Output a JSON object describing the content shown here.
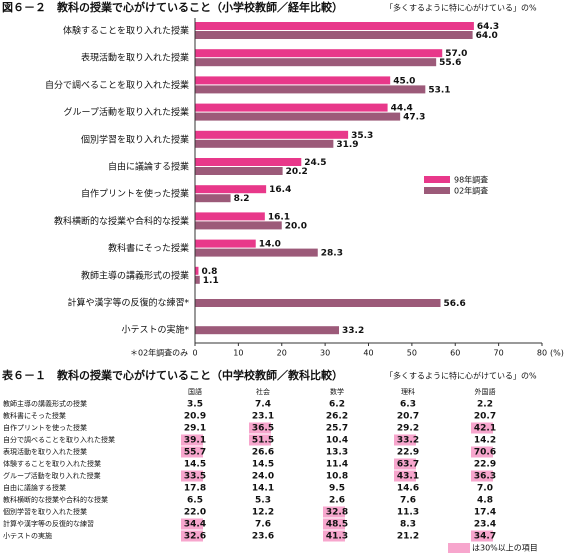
{
  "chart_data": {
    "type": "bar",
    "orientation": "horizontal",
    "title": "図６－２　教科の授業で心がけていること（小学校教師／経年比較）",
    "subtitle": "「多くするように特に心がけている」の%",
    "categories": [
      "体験することを取り入れた授業",
      "表現活動を取り入れた授業",
      "自分で調べることを取り入れた授業",
      "グループ活動を取り入れた授業",
      "個別学習を取り入れた授業",
      "自由に議論する授業",
      "自作プリントを使った授業",
      "教科横断的な授業や合科的な授業",
      "教科書にそった授業",
      "教師主導の講義形式の授業",
      "計算や漢字等の反復的な練習*",
      "小テストの実施*"
    ],
    "series": [
      {
        "name": "98年調査",
        "color": "#e8388a",
        "values": [
          64.3,
          57,
          45,
          44.4,
          35.3,
          24.5,
          16.4,
          16.1,
          14,
          0.8,
          null,
          null
        ],
        "value_labels": [
          "64.3",
          "57.0",
          "45.0",
          "44.4",
          "35.3",
          "24.5",
          "16.4",
          "16.1",
          "14.0",
          "0.8",
          null,
          null
        ]
      },
      {
        "name": "02年調査",
        "color": "#9c5a79",
        "values": [
          64,
          55.6,
          53.1,
          47.3,
          31.9,
          20.2,
          8.2,
          20,
          28.3,
          1.1,
          56.6,
          33.2
        ],
        "value_labels": [
          "64.0",
          "55.6",
          "53.1",
          "47.3",
          "31.9",
          "20.2",
          "8.2",
          "20.0",
          "28.3",
          "1.1",
          "56.6",
          "33.2"
        ]
      }
    ],
    "xlim": [
      0,
      80
    ],
    "xticks": [
      0,
      10,
      20,
      30,
      40,
      50,
      60,
      70,
      80
    ],
    "x_unit": "(%)",
    "note": "＊02年調査のみ",
    "legend": "right"
  },
  "table": {
    "title": "表６－１　教科の授業で心がけていること（中学校教師／教科比較）",
    "subtitle": "「多くするように特に心がけている」の%",
    "columns": [
      "国語",
      "社会",
      "数学",
      "理科",
      "外国語"
    ],
    "rows": [
      {
        "label": "教師主導の講義形式の授業",
        "values": [
          "3.5",
          "7.4",
          "6.2",
          "6.3",
          "2.2"
        ]
      },
      {
        "label": "教科書にそった授業",
        "values": [
          "20.9",
          "23.1",
          "26.2",
          "20.7",
          "20.7"
        ]
      },
      {
        "label": "自作プリントを使った授業",
        "values": [
          "29.1",
          "36.5",
          "25.7",
          "29.2",
          "42.1"
        ]
      },
      {
        "label": "自分で調べることを取り入れた授業",
        "values": [
          "39.1",
          "51.5",
          "10.4",
          "33.2",
          "14.2"
        ]
      },
      {
        "label": "表現活動を取り入れた授業",
        "values": [
          "55.7",
          "26.6",
          "13.3",
          "22.9",
          "70.6"
        ]
      },
      {
        "label": "体験することを取り入れた授業",
        "values": [
          "14.5",
          "14.5",
          "11.4",
          "63.7",
          "22.9"
        ]
      },
      {
        "label": "グループ活動を取り入れた授業",
        "values": [
          "33.5",
          "24.0",
          "10.8",
          "43.1",
          "36.3"
        ]
      },
      {
        "label": "自由に議論する授業",
        "values": [
          "17.8",
          "14.1",
          "9.5",
          "14.6",
          "7.0"
        ]
      },
      {
        "label": "教科横断的な授業や合科的な授業",
        "values": [
          "6.5",
          "5.3",
          "2.6",
          "7.6",
          "4.8"
        ]
      },
      {
        "label": "個別学習を取り入れた授業",
        "values": [
          "22.0",
          "12.2",
          "32.8",
          "11.3",
          "17.4"
        ]
      },
      {
        "label": "計算や漢字等の反復的な練習",
        "values": [
          "34.4",
          "7.6",
          "48.5",
          "8.3",
          "23.4"
        ]
      },
      {
        "label": "小テストの実施",
        "values": [
          "32.6",
          "23.6",
          "41.3",
          "21.2",
          "34.7"
        ]
      }
    ],
    "highlight_min": 30,
    "highlight_color": "#f7a6cd",
    "highlight_note": "は30%以上の項目"
  }
}
